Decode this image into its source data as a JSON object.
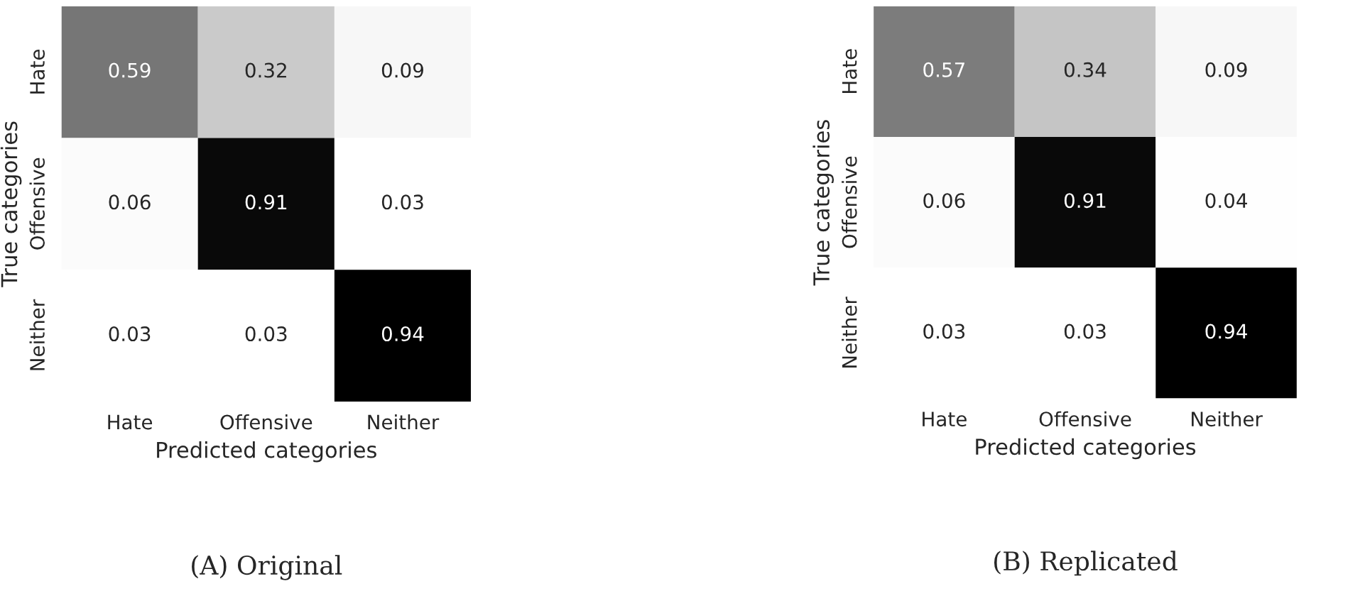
{
  "chart_data": [
    {
      "type": "heatmap",
      "xlabel": "Predicted categories",
      "ylabel": "True categories",
      "annotations": [
        "(A) Original"
      ],
      "categories": [
        "Hate",
        "Offensive",
        "Neither"
      ],
      "y_categories": [
        "Hate",
        "Offensive",
        "Neither"
      ],
      "cells": [
        [
          0.59,
          0.32,
          0.09
        ],
        [
          0.06,
          0.91,
          0.03
        ],
        [
          0.03,
          0.03,
          0.94
        ]
      ],
      "data_labels": true
    },
    {
      "type": "heatmap",
      "xlabel": "Predicted categories",
      "ylabel": "True categories",
      "annotations": [
        "(B) Replicated"
      ],
      "categories": [
        "Hate",
        "Offensive",
        "Neither"
      ],
      "y_categories": [
        "Hate",
        "Offensive",
        "Neither"
      ],
      "cells": [
        [
          0.57,
          0.34,
          0.09
        ],
        [
          0.06,
          0.91,
          0.04
        ],
        [
          0.03,
          0.03,
          0.94
        ]
      ],
      "data_labels": true
    }
  ]
}
